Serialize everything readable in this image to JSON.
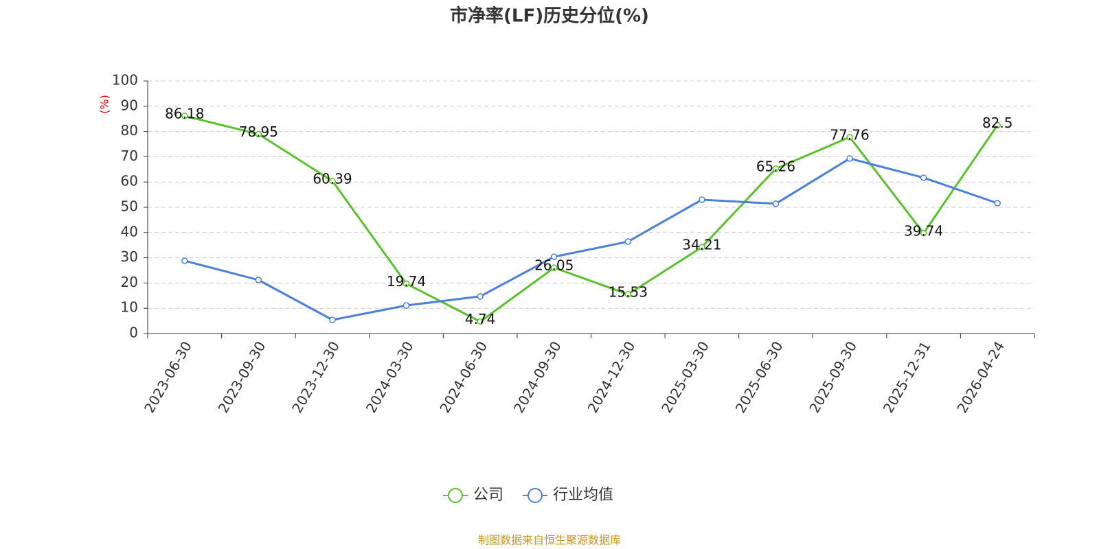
{
  "chart_data": {
    "type": "line",
    "title": "市净率(LF)历史分位(%)",
    "y_label": "(%)",
    "categories": [
      "2023-06-30",
      "2023-09-30",
      "2023-12-30",
      "2024-03-30",
      "2024-06-30",
      "2024-09-30",
      "2024-12-30",
      "2025-03-30",
      "2025-06-30",
      "2025-09-30",
      "2025-12-31",
      "2026-04-24"
    ],
    "series": [
      {
        "name": "公司",
        "color": "#5bc129",
        "show_labels": true,
        "values": [
          86.18,
          78.95,
          60.39,
          19.74,
          4.74,
          26.05,
          15.53,
          34.21,
          65.26,
          77.76,
          39.74,
          82.5
        ]
      },
      {
        "name": "行业均值",
        "color": "#4a7fdc",
        "show_labels": false,
        "values": [
          28.8,
          21.2,
          5.4,
          11.1,
          14.7,
          30.4,
          36.4,
          53.0,
          51.4,
          69.3,
          61.7,
          51.6
        ]
      }
    ],
    "ylim": [
      0,
      100
    ],
    "yticks": [
      0,
      10,
      20,
      30,
      40,
      50,
      60,
      70,
      80,
      90,
      100
    ],
    "grid": true,
    "source": "制图数据来自恒生聚源数据库"
  }
}
